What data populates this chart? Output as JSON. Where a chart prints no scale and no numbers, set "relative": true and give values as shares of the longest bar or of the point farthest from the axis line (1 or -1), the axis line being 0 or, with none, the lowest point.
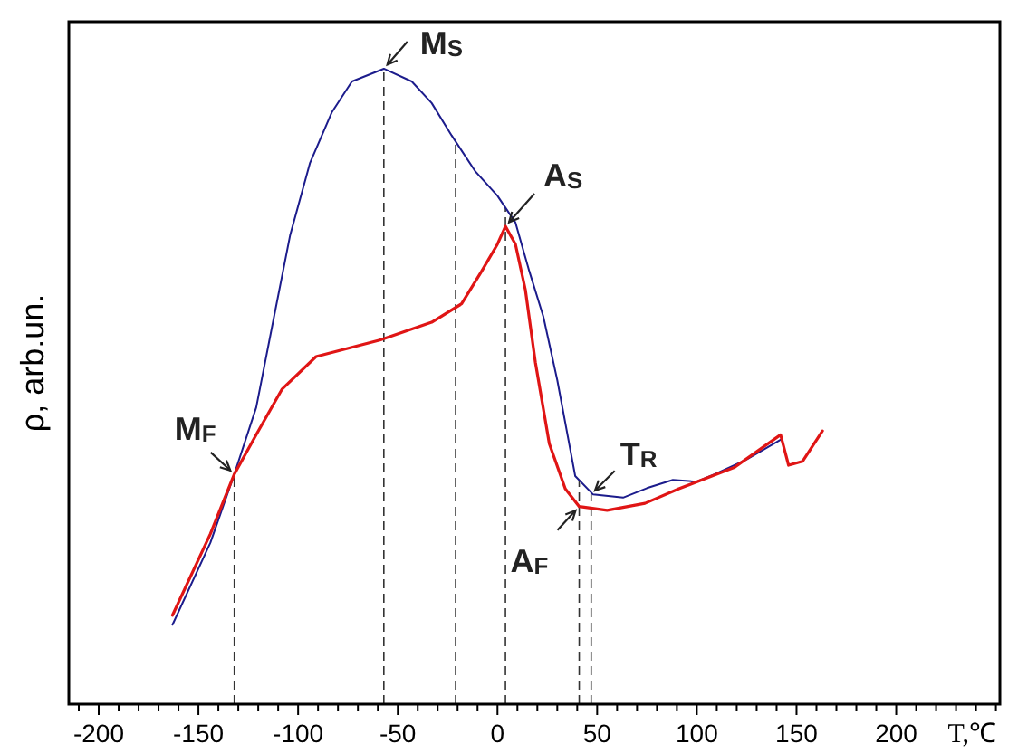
{
  "chart_data": {
    "type": "line",
    "relative": true,
    "xlabel": "T,℃",
    "ylabel": "ρ, arb.un.",
    "xlim": [
      -215,
      252
    ],
    "xticks": [
      {
        "value": -210,
        "label": null
      },
      -200,
      {
        "value": -190,
        "label": null
      },
      {
        "value": -180,
        "label": null
      },
      {
        "value": -170,
        "label": null
      },
      {
        "value": -160,
        "label": null
      },
      -150,
      {
        "value": -140,
        "label": null
      },
      {
        "value": -130,
        "label": null
      },
      {
        "value": -120,
        "label": null
      },
      {
        "value": -110,
        "label": null
      },
      -100,
      {
        "value": -90,
        "label": null
      },
      {
        "value": -80,
        "label": null
      },
      {
        "value": -70,
        "label": null
      },
      {
        "value": -60,
        "label": null
      },
      -50,
      {
        "value": -40,
        "label": null
      },
      {
        "value": -30,
        "label": null
      },
      {
        "value": -20,
        "label": null
      },
      {
        "value": -10,
        "label": null
      },
      0,
      {
        "value": 10,
        "label": null
      },
      {
        "value": 20,
        "label": null
      },
      {
        "value": 30,
        "label": null
      },
      {
        "value": 40,
        "label": null
      },
      50,
      {
        "value": 60,
        "label": null
      },
      {
        "value": 70,
        "label": null
      },
      {
        "value": 80,
        "label": null
      },
      {
        "value": 90,
        "label": null
      },
      100,
      {
        "value": 110,
        "label": null
      },
      {
        "value": 120,
        "label": null
      },
      {
        "value": 130,
        "label": null
      },
      {
        "value": 140,
        "label": null
      },
      150,
      {
        "value": 160,
        "label": null
      },
      {
        "value": 170,
        "label": null
      },
      {
        "value": 180,
        "label": null
      },
      {
        "value": 190,
        "label": null
      },
      200,
      {
        "value": 210,
        "label": null
      },
      {
        "value": 220,
        "label": null
      },
      {
        "value": 230,
        "label": null
      },
      {
        "value": 240,
        "label": null
      },
      {
        "value": 250,
        "label": null
      }
    ],
    "grid": false,
    "marker": "none",
    "line_style": "solid",
    "series": [
      {
        "color": "#1c1c8c",
        "x": [
          -163,
          -144,
          -132,
          -121,
          -113,
          -104,
          -94,
          -83,
          -73,
          -57,
          -43,
          -33,
          -23,
          -11,
          0,
          9,
          16,
          23,
          30,
          39,
          48,
          63,
          75,
          88,
          100,
          109,
          125,
          142
        ],
        "values": [
          0.125,
          0.254,
          0.362,
          0.467,
          0.595,
          0.738,
          0.852,
          0.932,
          0.98,
          1.0,
          0.98,
          0.946,
          0.895,
          0.838,
          0.8,
          0.758,
          0.681,
          0.61,
          0.51,
          0.359,
          0.33,
          0.325,
          0.34,
          0.353,
          0.35,
          0.362,
          0.385,
          0.416
        ]
      },
      {
        "color": "#e01515",
        "x": [
          -163,
          -144,
          -132,
          -121,
          -108,
          -91,
          -59,
          -33,
          -18,
          -8,
          0,
          4,
          9,
          14,
          19,
          26,
          34,
          41,
          55,
          74,
          91,
          119,
          142,
          146,
          153,
          163
        ],
        "values": [
          0.14,
          0.268,
          0.362,
          0.424,
          0.496,
          0.547,
          0.573,
          0.601,
          0.63,
          0.681,
          0.724,
          0.752,
          0.724,
          0.652,
          0.538,
          0.41,
          0.339,
          0.311,
          0.305,
          0.316,
          0.339,
          0.373,
          0.424,
          0.376,
          0.382,
          0.43
        ]
      }
    ],
    "ref_lines": [
      {
        "axis": "x",
        "value": -132,
        "line_style": "dashed"
      },
      {
        "axis": "x",
        "value": -57,
        "line_style": "dashed"
      },
      {
        "axis": "x",
        "value": -21,
        "line_style": "dashed"
      },
      {
        "axis": "x",
        "value": 4,
        "line_style": "dashed"
      },
      {
        "axis": "x",
        "value": 41,
        "line_style": "dashed"
      },
      {
        "axis": "x",
        "value": 47,
        "line_style": "dashed"
      }
    ],
    "annotations": [
      {
        "text": "M$_{S}$",
        "x": -57,
        "y": 1.0
      },
      {
        "text": "A$_{S}$",
        "x": 4,
        "y": 0.752
      },
      {
        "text": "M$_{F}$",
        "x": -132,
        "y": 0.362
      },
      {
        "text": "A$_{F}$",
        "x": 41,
        "y": 0.311
      },
      {
        "text": "T$_{R}$",
        "x": 47,
        "y": 0.33
      }
    ]
  }
}
